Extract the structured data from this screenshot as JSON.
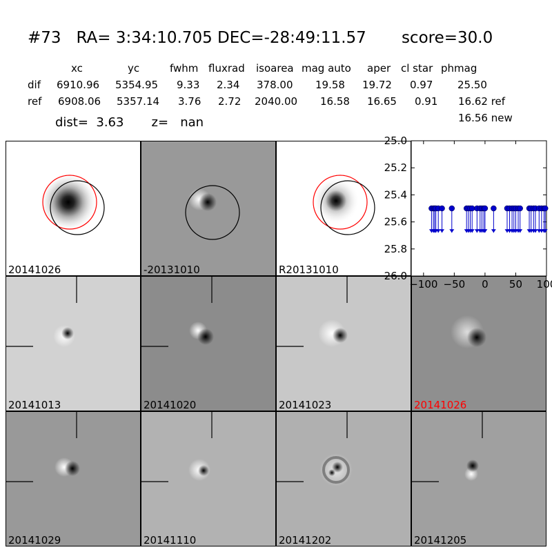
{
  "header": {
    "title": "#73   RA= 3:34:10.705 DEC=-28:49:11.57       score=30.0"
  },
  "table": {
    "columns": [
      "xc",
      "yc",
      "fwhm",
      "fluxrad",
      "isoarea",
      "mag auto",
      "aper",
      "cl star",
      "phmag"
    ],
    "rows": [
      {
        "label": "dif",
        "values": [
          "6910.96",
          "5354.95",
          "9.33",
          "2.34",
          "378.00",
          "19.58",
          "19.72",
          "0.97",
          "25.50"
        ]
      },
      {
        "label": "ref",
        "values": [
          "6908.06",
          "5357.14",
          "3.76",
          "2.72",
          "2040.00",
          "16.58",
          "16.65",
          "0.91",
          "16.62 ref"
        ]
      }
    ],
    "extra_phmag": "16.56 new"
  },
  "dist_line": "dist=  3.63       z=   nan",
  "panels": [
    {
      "label": "20141026",
      "bg": "#ffffff"
    },
    {
      "label": "-20131010",
      "bg": "#999999"
    },
    {
      "label": "R20131010",
      "bg": "#ffffff"
    },
    {
      "label": "20141013",
      "bg": "#d2d2d2"
    },
    {
      "label": "20141020",
      "bg": "#8c8c8c"
    },
    {
      "label": "20141023",
      "bg": "#c8c8c8"
    },
    {
      "label": "20141026",
      "bg": "#8f8f8f",
      "label_color": "#ff0000"
    },
    {
      "label": "20141029",
      "bg": "#999999"
    },
    {
      "label": "20141110",
      "bg": "#b2b2b2"
    },
    {
      "label": "20141202",
      "bg": "#b0b0b0"
    },
    {
      "label": "20141205",
      "bg": "#a0a0a0"
    }
  ],
  "chart_data": {
    "type": "scatter",
    "title": "",
    "xlabel": "",
    "ylabel": "",
    "xlim": [
      -120,
      100
    ],
    "ylim": [
      26.0,
      25.0
    ],
    "y_inverted": true,
    "xticks": [
      "−100",
      "−50",
      "0",
      "50",
      "100"
    ],
    "yticks": [
      "25.0",
      "25.2",
      "25.4",
      "25.6",
      "25.8",
      "26.0"
    ],
    "marker_color": "#0000cc",
    "upper_limit_arrows": true,
    "arrow_to": 25.68,
    "series": [
      {
        "x": [
          -87,
          -84,
          -82,
          -80,
          -76,
          -70,
          -54,
          -30,
          -27,
          -24,
          -21,
          -13,
          -8,
          -5,
          -2,
          0,
          14,
          36,
          40,
          44,
          47,
          50,
          54,
          57,
          72,
          75,
          79,
          82,
          88,
          92,
          96,
          98
        ],
        "y": [
          25.5,
          25.5,
          25.5,
          25.5,
          25.5,
          25.5,
          25.5,
          25.5,
          25.5,
          25.5,
          25.5,
          25.5,
          25.5,
          25.5,
          25.5,
          25.5,
          25.5,
          25.5,
          25.5,
          25.5,
          25.5,
          25.5,
          25.5,
          25.5,
          25.5,
          25.5,
          25.5,
          25.5,
          25.5,
          25.5,
          25.5,
          25.5
        ]
      }
    ]
  }
}
